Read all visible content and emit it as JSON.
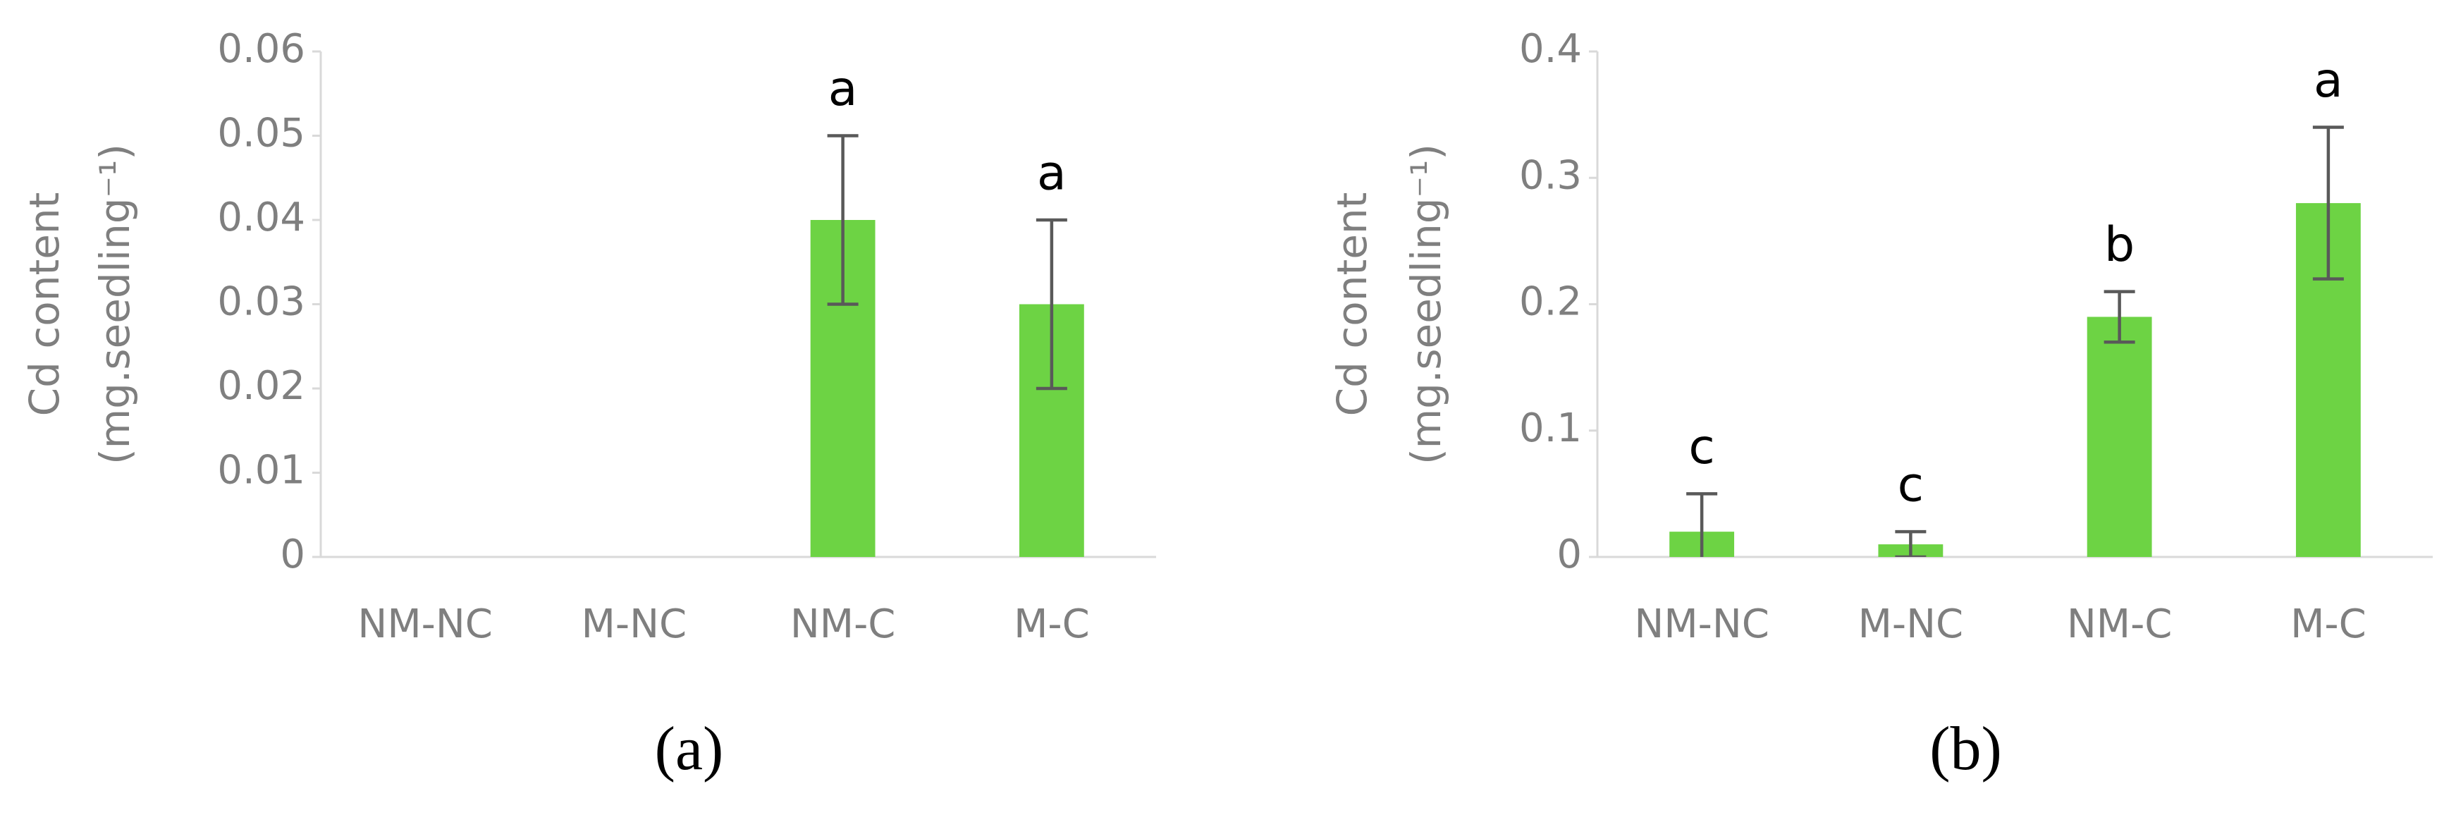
{
  "chart_data": [
    {
      "type": "bar",
      "caption": "(a)",
      "ylabel": [
        "Cd content",
        "(mg.seedling⁻¹)"
      ],
      "categories": [
        "NM-NC",
        "M-NC",
        "NM-C",
        "M-C"
      ],
      "values": [
        0,
        0,
        0.04,
        0.03
      ],
      "errors": [
        0,
        0,
        0.01,
        0.01
      ],
      "letters": [
        null,
        null,
        "a",
        "a"
      ],
      "color": "#6dd344",
      "ylim": [
        0,
        0.06
      ],
      "yticks": [
        0,
        0.01,
        0.02,
        0.03,
        0.04,
        0.05,
        0.06
      ],
      "grid": false
    },
    {
      "type": "bar",
      "caption": "(b)",
      "ylabel": [
        "Cd content",
        "(mg.seedling⁻¹)"
      ],
      "categories": [
        "NM-NC",
        "M-NC",
        "NM-C",
        "M-C"
      ],
      "values": [
        0.02,
        0.01,
        0.19,
        0.28
      ],
      "errors": [
        0.03,
        0.01,
        0.02,
        0.06
      ],
      "letters": [
        "c",
        "c",
        "b",
        "a"
      ],
      "color": "#6dd344",
      "ylim": [
        0,
        0.4
      ],
      "yticks": [
        0,
        0.1,
        0.2,
        0.3,
        0.4
      ],
      "grid": false
    }
  ]
}
